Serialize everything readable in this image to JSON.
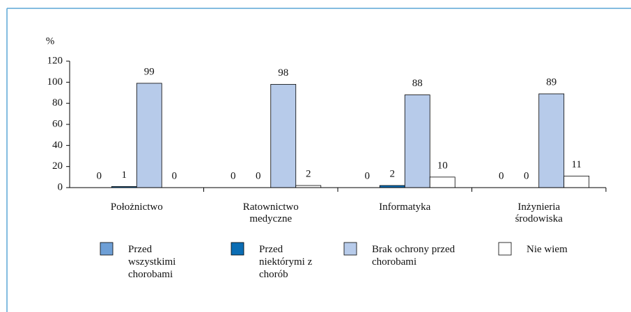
{
  "chart_data": {
    "type": "bar",
    "y_label": "%",
    "categories": [
      "Położnictwo",
      "Ratownictwo medyczne",
      "Informatyka",
      "Inżynieria środowiska"
    ],
    "series": [
      {
        "name": "Przed wszystkimi chorobami",
        "color": "#6e9fd6",
        "values": [
          0,
          0,
          0,
          0
        ]
      },
      {
        "name": "Przed niektórymi z chorób",
        "color": "#0b6db4",
        "values": [
          1,
          0,
          2,
          0
        ]
      },
      {
        "name": "Brak ochrony przed chorobami",
        "color": "#b7cbea",
        "values": [
          99,
          98,
          88,
          89
        ]
      },
      {
        "name": "Nie wiem",
        "color": "#ffffff",
        "values": [
          0,
          2,
          10,
          11
        ]
      }
    ],
    "ylim": [
      0,
      120
    ],
    "yticks": [
      0,
      20,
      40,
      60,
      80,
      100,
      120
    ]
  }
}
